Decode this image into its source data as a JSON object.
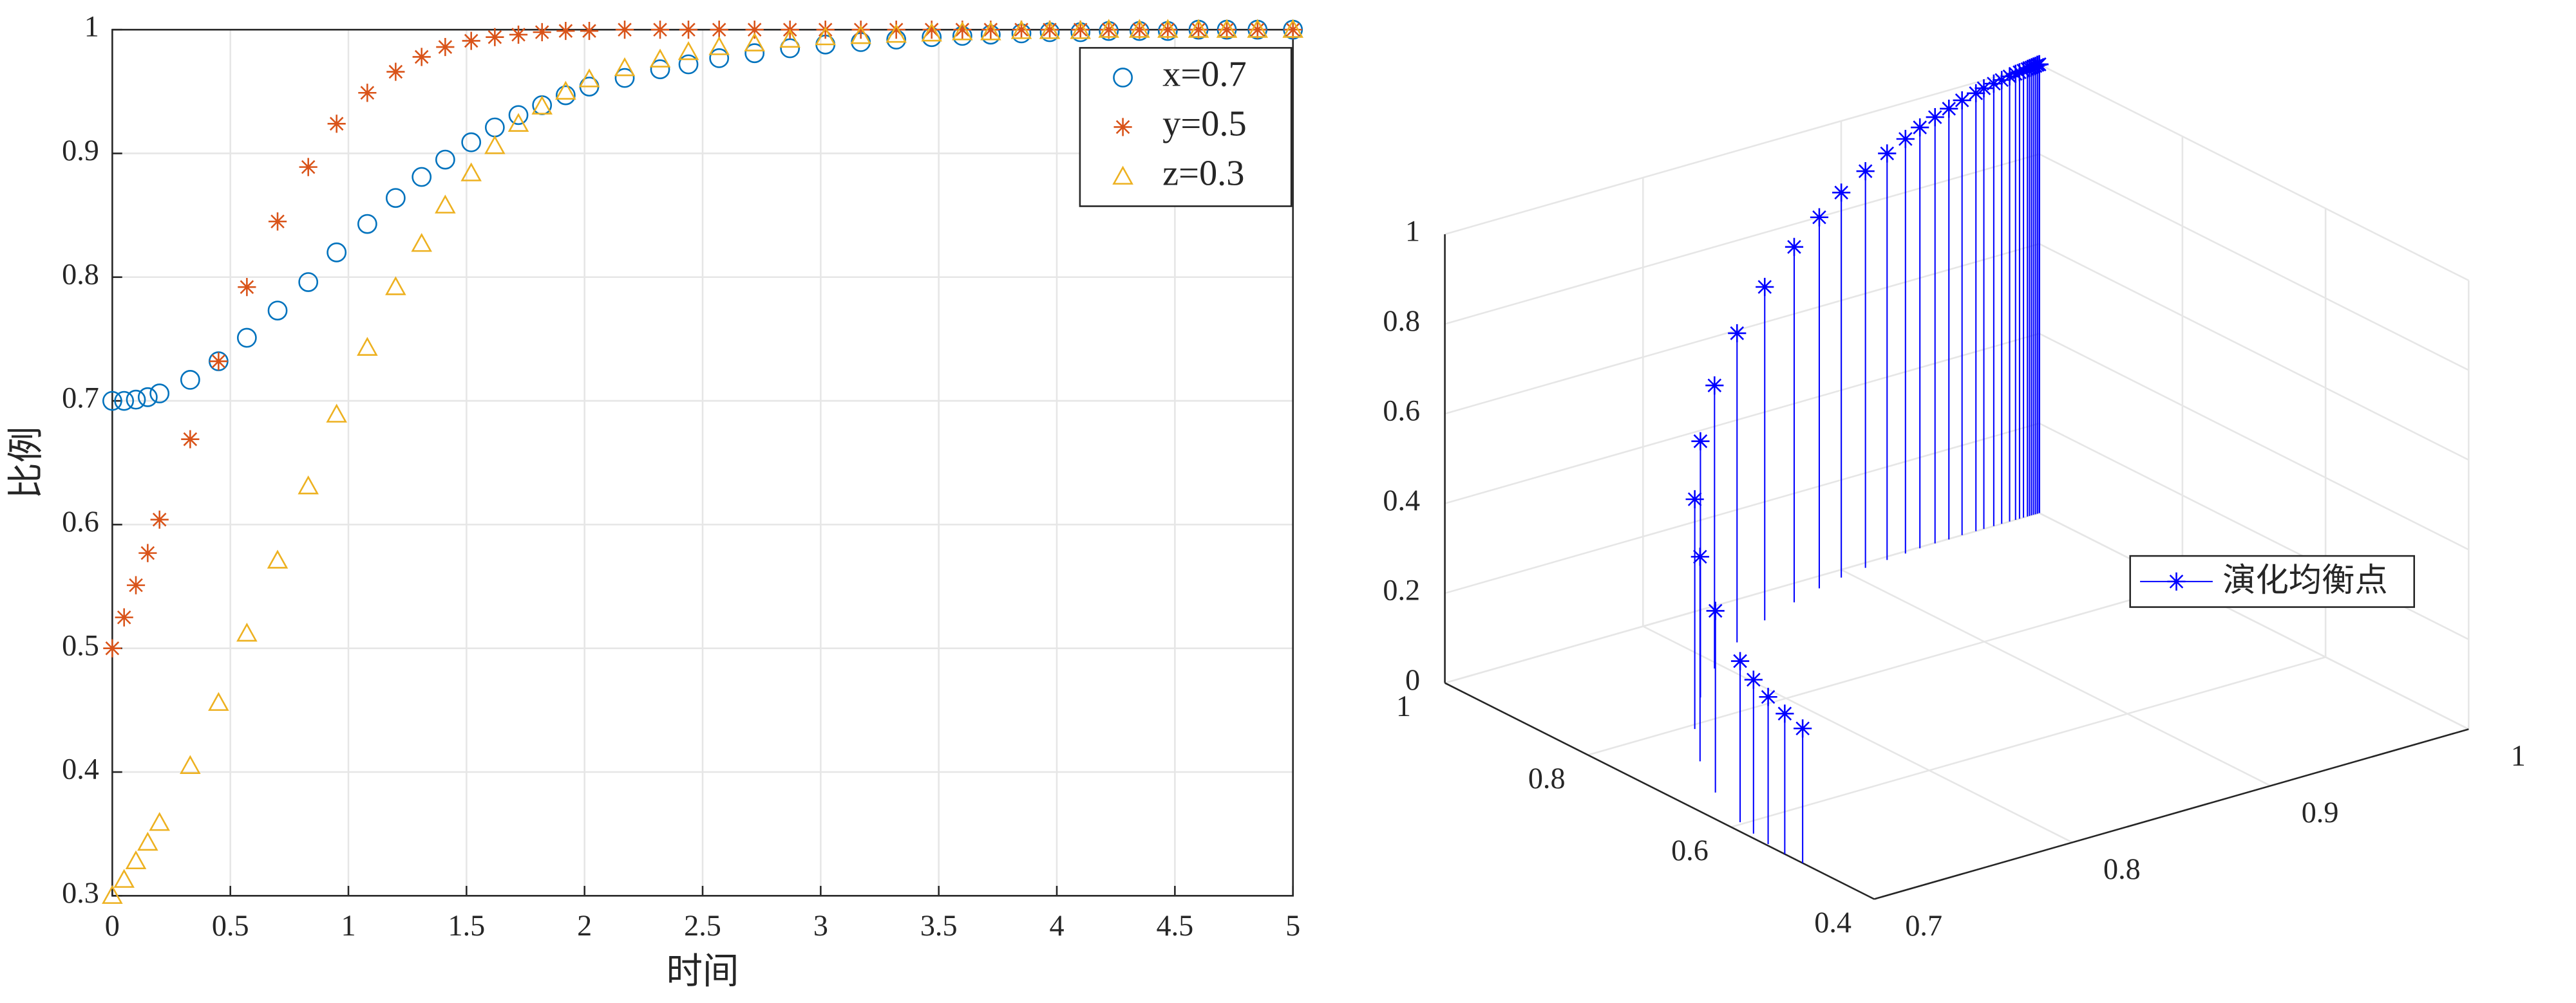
{
  "chart_data": [
    {
      "type": "scatter",
      "xlabel": "时间",
      "ylabel": "比例",
      "x": [
        0,
        0.05,
        0.1,
        0.15,
        0.2,
        0.33,
        0.45,
        0.57,
        0.7,
        0.83,
        0.95,
        1.08,
        1.2,
        1.31,
        1.41,
        1.52,
        1.62,
        1.72,
        1.82,
        1.92,
        2.02,
        2.17,
        2.32,
        2.44,
        2.57,
        2.72,
        2.87,
        3.02,
        3.17,
        3.32,
        3.47,
        3.6,
        3.72,
        3.85,
        3.97,
        4.1,
        4.22,
        4.35,
        4.47,
        4.6,
        4.72,
        4.85,
        5
      ],
      "series": [
        {
          "name": "x=0.7",
          "color": "#0072BD",
          "marker": "circle",
          "values": [
            0.7,
            0.7,
            0.701,
            0.703,
            0.706,
            0.717,
            0.732,
            0.751,
            0.773,
            0.796,
            0.82,
            0.843,
            0.864,
            0.881,
            0.895,
            0.909,
            0.921,
            0.931,
            0.939,
            0.947,
            0.954,
            0.961,
            0.968,
            0.972,
            0.977,
            0.981,
            0.985,
            0.988,
            0.99,
            0.992,
            0.994,
            0.995,
            0.996,
            0.997,
            0.998,
            0.998,
            0.999,
            0.999,
            0.999,
            1,
            1,
            1,
            1
          ]
        },
        {
          "name": "y=0.5",
          "color": "#D95319",
          "marker": "star",
          "values": [
            0.5,
            0.525,
            0.551,
            0.577,
            0.604,
            0.669,
            0.732,
            0.792,
            0.845,
            0.889,
            0.924,
            0.949,
            0.966,
            0.978,
            0.986,
            0.991,
            0.994,
            0.996,
            0.998,
            0.999,
            0.999,
            1,
            1,
            1,
            1,
            1,
            1,
            1,
            1,
            1,
            1,
            1,
            1,
            1,
            1,
            1,
            1,
            1,
            1,
            1,
            1,
            1,
            1
          ]
        },
        {
          "name": "z=0.3",
          "color": "#EDB120",
          "marker": "triangle",
          "values": [
            0.3,
            0.313,
            0.328,
            0.343,
            0.359,
            0.405,
            0.456,
            0.512,
            0.571,
            0.631,
            0.689,
            0.743,
            0.792,
            0.827,
            0.858,
            0.884,
            0.906,
            0.924,
            0.938,
            0.95,
            0.96,
            0.969,
            0.976,
            0.982,
            0.986,
            0.989,
            0.992,
            0.994,
            0.995,
            0.996,
            0.997,
            0.998,
            0.998,
            0.999,
            0.999,
            0.999,
            1,
            1,
            1,
            1,
            1,
            1,
            1
          ]
        }
      ],
      "xlim": [
        0,
        5
      ],
      "ylim": [
        0.3,
        1
      ],
      "xticks": [
        0,
        0.5,
        1,
        1.5,
        2,
        2.5,
        3,
        3.5,
        4,
        4.5,
        5
      ],
      "yticks": [
        0.3,
        0.4,
        0.5,
        0.6,
        0.7,
        0.8,
        0.9,
        1
      ],
      "grid": true,
      "legend": "upper right"
    },
    {
      "type": "stem3",
      "series": [
        {
          "name": "演化均衡点",
          "color": "#0000FF",
          "x": [
            0.7,
            0.7,
            0.701,
            0.703,
            0.706,
            0.717,
            0.732,
            0.751,
            0.773,
            0.796,
            0.82,
            0.843,
            0.864,
            0.881,
            0.895,
            0.909,
            0.921,
            0.931,
            0.939,
            0.947,
            0.954,
            0.961,
            0.968,
            0.972,
            0.977,
            0.981,
            0.985,
            0.988,
            0.99,
            0.992,
            0.994,
            0.995,
            0.996,
            0.997,
            0.998,
            0.998,
            0.999,
            0.999,
            0.999,
            1,
            1,
            1,
            1
          ],
          "y": [
            0.5,
            0.525,
            0.551,
            0.577,
            0.604,
            0.669,
            0.732,
            0.792,
            0.845,
            0.889,
            0.924,
            0.949,
            0.966,
            0.978,
            0.986,
            0.991,
            0.994,
            0.996,
            0.998,
            0.999,
            0.999,
            1,
            1,
            1,
            1,
            1,
            1,
            1,
            1,
            1,
            1,
            1,
            1,
            1,
            1,
            1,
            1,
            1,
            1,
            1,
            1,
            1,
            1
          ],
          "z": [
            0.3,
            0.313,
            0.328,
            0.343,
            0.359,
            0.405,
            0.456,
            0.512,
            0.571,
            0.631,
            0.689,
            0.743,
            0.792,
            0.827,
            0.858,
            0.884,
            0.906,
            0.924,
            0.938,
            0.95,
            0.96,
            0.969,
            0.976,
            0.982,
            0.986,
            0.989,
            0.992,
            0.994,
            0.995,
            0.996,
            0.997,
            0.998,
            0.998,
            0.999,
            0.999,
            0.999,
            1,
            1,
            1,
            1,
            1,
            1,
            1
          ]
        }
      ],
      "xlim": [
        0.7,
        1
      ],
      "ylim": [
        0.4,
        1
      ],
      "zlim": [
        0,
        1
      ],
      "xticks": [
        0.7,
        0.8,
        0.9,
        1
      ],
      "yticks": [
        0.4,
        0.6,
        0.8,
        1
      ],
      "zticks": [
        0,
        0.2,
        0.4,
        0.6,
        0.8,
        1
      ],
      "grid": true,
      "legend": "east"
    }
  ]
}
